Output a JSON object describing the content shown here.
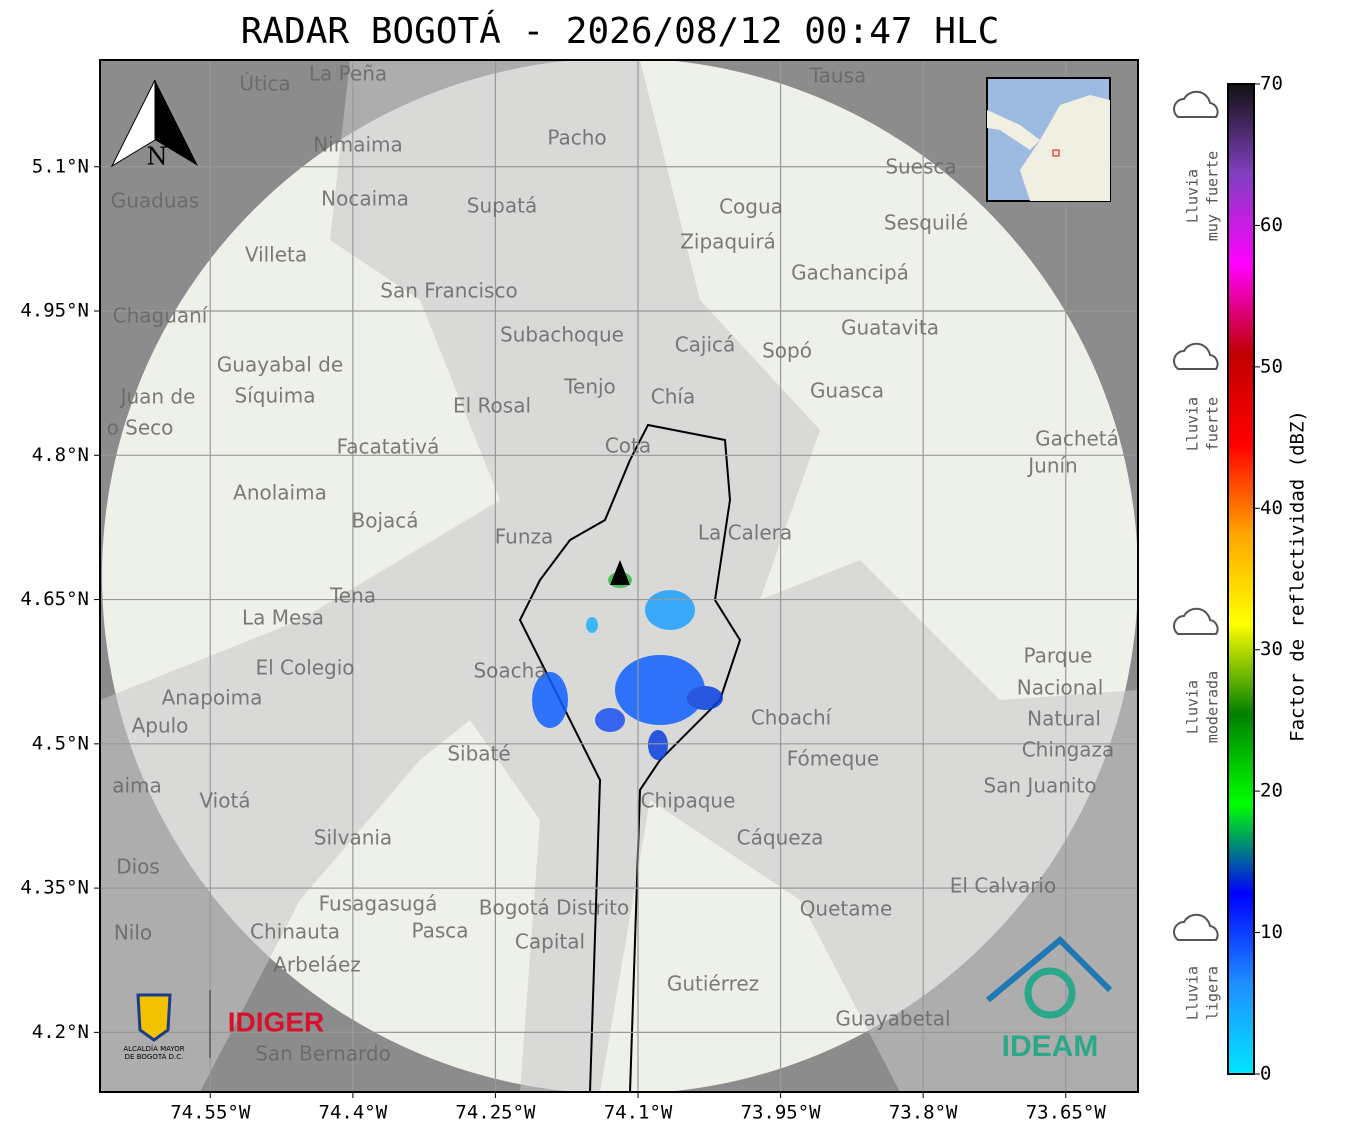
{
  "title": "RADAR BOGOTÁ - 2026/08/12 00:47 HLC",
  "map": {
    "xlim": [
      -74.666,
      -73.574
    ],
    "ylim": [
      4.138,
      5.211
    ],
    "grid": true,
    "xticks": [
      {
        "value": -74.55,
        "label": "74.55°W"
      },
      {
        "value": -74.4,
        "label": "74.4°W"
      },
      {
        "value": -74.25,
        "label": "74.25°W"
      },
      {
        "value": -74.1,
        "label": "74.1°W"
      },
      {
        "value": -73.95,
        "label": "73.95°W"
      },
      {
        "value": -73.8,
        "label": "73.8°W"
      },
      {
        "value": -73.65,
        "label": "73.65°W"
      }
    ],
    "yticks": [
      {
        "value": 5.1,
        "label": "5.1°N"
      },
      {
        "value": 4.95,
        "label": "4.95°N"
      },
      {
        "value": 4.8,
        "label": "4.8°N"
      },
      {
        "value": 4.65,
        "label": "4.65°N"
      },
      {
        "value": 4.5,
        "label": "4.5°N"
      },
      {
        "value": 4.35,
        "label": "4.35°N"
      },
      {
        "value": 4.2,
        "label": "4.2°N"
      }
    ],
    "north_label": "N",
    "places": [
      "La Peña",
      "Útica",
      "Tausa",
      "Pacho",
      "Nimaima",
      "Guaduas",
      "Nocaima",
      "Supatá",
      "Suesca",
      "Cogua",
      "Sesquilé",
      "Zipaquirá",
      "Villeta",
      "Gachancipá",
      "San Francisco",
      "Chaguaní",
      "Guatavita",
      "Subachoque",
      "Cajicá",
      "Sopó",
      "Guayabal de",
      "Síquima",
      "Tenjo",
      "Juan de",
      "Chía",
      "Guasca",
      "El Rosal",
      "o Seco",
      "Cota",
      "Gachetá",
      "Facatativá",
      "Junín",
      "Anolaima",
      "Bojacá",
      "Funza",
      "La Calera",
      "Tena",
      "La Mesa",
      "El Colegio",
      "Soacha",
      "Parque",
      "Nacional",
      "Anapoima",
      "Apulo",
      "Natural",
      "Choachí",
      "Chingaza",
      "Sibaté",
      "Fómeque",
      "San Juanito",
      "aima",
      "Viotá",
      "Chipaque",
      "Silvania",
      "Cáqueza",
      "Dios",
      "El Calvario",
      "Fusagasugá",
      "Bogotá Distrito",
      "Quetame",
      "Nilo",
      "Chinauta",
      "Pasca",
      "Capital",
      "Arbeláez",
      "Gutiérrez",
      "Guayabetal",
      "San Bernardo"
    ]
  },
  "colorbar": {
    "label": "Factor de reflectividad (dBZ)",
    "lim": [
      0,
      70
    ],
    "ticks": [
      0,
      10,
      20,
      30,
      40,
      50,
      60,
      70
    ],
    "colors": [
      "#00e5ff",
      "#1e90ff",
      "#0000ff",
      "#00ff00",
      "#008000",
      "#ffff00",
      "#ffa500",
      "#ff0000",
      "#c00000",
      "#ff00ff",
      "#8040c0",
      "#111111"
    ]
  },
  "rain_levels": [
    [
      "Lluvia",
      "muy fuerte"
    ],
    [
      "Lluvia",
      "fuerte"
    ],
    [
      "Lluvia",
      "moderada"
    ],
    [
      "Lluvia",
      "ligera"
    ]
  ],
  "logos": {
    "idiger": "IDIGER",
    "alcaldia": [
      "ALCALDÍA MAYOR",
      "DE BOGOTÁ D.C."
    ],
    "ideam": "IDEAM"
  }
}
